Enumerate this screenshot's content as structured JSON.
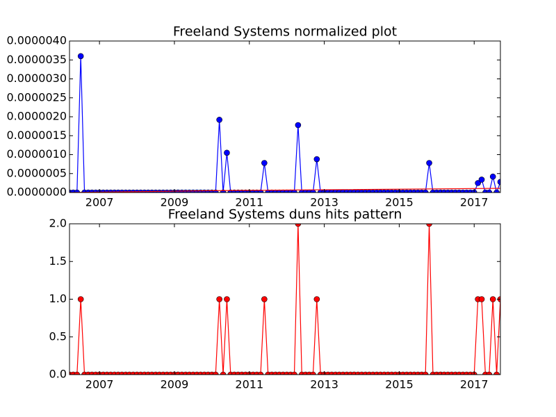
{
  "chart_data": [
    {
      "type": "line",
      "title": "Freeland Systems normalized plot",
      "x": [
        2006.2,
        2006.3,
        2006.4,
        2006.5,
        2006.6,
        2006.7,
        2006.8,
        2006.9,
        2007.0,
        2007.1,
        2007.2,
        2007.3,
        2007.4,
        2007.5,
        2007.6,
        2007.7,
        2007.8,
        2007.9,
        2008.0,
        2008.1,
        2008.2,
        2008.3,
        2008.4,
        2008.5,
        2008.6,
        2008.7,
        2008.8,
        2008.9,
        2009.0,
        2009.1,
        2009.2,
        2009.3,
        2009.4,
        2009.5,
        2009.6,
        2009.7,
        2009.8,
        2009.9,
        2010.0,
        2010.1,
        2010.2,
        2010.3,
        2010.4,
        2010.5,
        2010.6,
        2010.7,
        2010.8,
        2010.9,
        2011.0,
        2011.1,
        2011.2,
        2011.3,
        2011.4,
        2011.5,
        2011.6,
        2011.7,
        2011.8,
        2011.9,
        2012.0,
        2012.1,
        2012.2,
        2012.3,
        2012.4,
        2012.5,
        2012.6,
        2012.7,
        2012.8,
        2012.9,
        2013.0,
        2013.1,
        2013.2,
        2013.3,
        2013.4,
        2013.5,
        2013.6,
        2013.7,
        2013.8,
        2013.9,
        2014.0,
        2014.1,
        2014.2,
        2014.3,
        2014.4,
        2014.5,
        2014.6,
        2014.7,
        2014.8,
        2014.9,
        2015.0,
        2015.1,
        2015.2,
        2015.3,
        2015.4,
        2015.5,
        2015.6,
        2015.7,
        2015.8,
        2015.9,
        2016.0,
        2016.1,
        2016.2,
        2016.3,
        2016.4,
        2016.5,
        2016.6,
        2016.7,
        2016.8,
        2016.9,
        2017.0,
        2017.1,
        2017.2,
        2017.3,
        2017.4,
        2017.5,
        2017.6,
        2017.7
      ],
      "series": [
        {
          "color": "#0000ff",
          "values": [
            0,
            0,
            0,
            3.6e-06,
            0,
            0,
            0,
            0,
            0,
            0,
            0,
            0,
            0,
            0,
            0,
            0,
            0,
            0,
            0,
            0,
            0,
            0,
            0,
            0,
            0,
            0,
            0,
            0,
            0,
            0,
            0,
            0,
            0,
            0,
            0,
            0,
            0,
            0,
            0,
            0,
            1.92e-06,
            0,
            1.05e-06,
            0,
            0,
            0,
            0,
            0,
            0,
            0,
            0,
            0,
            7.8e-07,
            0,
            0,
            0,
            0,
            0,
            0,
            0,
            0,
            1.78e-06,
            0,
            0,
            0,
            0,
            8.8e-07,
            0,
            0,
            0,
            0,
            0,
            0,
            0,
            0,
            0,
            0,
            0,
            0,
            0,
            0,
            0,
            0,
            0,
            0,
            0,
            0,
            0,
            0,
            0,
            0,
            0,
            0,
            0,
            0,
            0,
            7.8e-07,
            0,
            0,
            0,
            0,
            0,
            0,
            0,
            0,
            0,
            0,
            0,
            0,
            2.5e-07,
            3.4e-07,
            0,
            0,
            4.2e-07,
            0,
            2.8e-07
          ]
        },
        {
          "color": "#ff0000",
          "marker": false,
          "x": [
            2006.2,
            2010.2,
            2017.7
          ],
          "values": [
            0,
            5e-08,
            1.1e-07
          ]
        }
      ],
      "xlim": [
        2006.2,
        2017.7
      ],
      "xticks": [
        2007,
        2009,
        2011,
        2013,
        2015,
        2017
      ],
      "ylim": [
        0,
        4e-06
      ],
      "yticks": [
        {
          "value": 0,
          "label": "0.0000000"
        },
        {
          "value": 5e-07,
          "label": "0.0000005"
        },
        {
          "value": 1e-06,
          "label": "0.0000010"
        },
        {
          "value": 1.5e-06,
          "label": "0.0000015"
        },
        {
          "value": 2e-06,
          "label": "0.0000020"
        },
        {
          "value": 2.5e-06,
          "label": "0.0000025"
        },
        {
          "value": 3e-06,
          "label": "0.0000030"
        },
        {
          "value": 3.5e-06,
          "label": "0.0000035"
        },
        {
          "value": 4e-06,
          "label": "0.0000040"
        }
      ]
    },
    {
      "type": "line",
      "title": "Freeland Systems duns hits pattern",
      "x": [
        2006.2,
        2006.3,
        2006.4,
        2006.5,
        2006.6,
        2006.7,
        2006.8,
        2006.9,
        2007.0,
        2007.1,
        2007.2,
        2007.3,
        2007.4,
        2007.5,
        2007.6,
        2007.7,
        2007.8,
        2007.9,
        2008.0,
        2008.1,
        2008.2,
        2008.3,
        2008.4,
        2008.5,
        2008.6,
        2008.7,
        2008.8,
        2008.9,
        2009.0,
        2009.1,
        2009.2,
        2009.3,
        2009.4,
        2009.5,
        2009.6,
        2009.7,
        2009.8,
        2009.9,
        2010.0,
        2010.1,
        2010.2,
        2010.3,
        2010.4,
        2010.5,
        2010.6,
        2010.7,
        2010.8,
        2010.9,
        2011.0,
        2011.1,
        2011.2,
        2011.3,
        2011.4,
        2011.5,
        2011.6,
        2011.7,
        2011.8,
        2011.9,
        2012.0,
        2012.1,
        2012.2,
        2012.3,
        2012.4,
        2012.5,
        2012.6,
        2012.7,
        2012.8,
        2012.9,
        2013.0,
        2013.1,
        2013.2,
        2013.3,
        2013.4,
        2013.5,
        2013.6,
        2013.7,
        2013.8,
        2013.9,
        2014.0,
        2014.1,
        2014.2,
        2014.3,
        2014.4,
        2014.5,
        2014.6,
        2014.7,
        2014.8,
        2014.9,
        2015.0,
        2015.1,
        2015.2,
        2015.3,
        2015.4,
        2015.5,
        2015.6,
        2015.7,
        2015.8,
        2015.9,
        2016.0,
        2016.1,
        2016.2,
        2016.3,
        2016.4,
        2016.5,
        2016.6,
        2016.7,
        2016.8,
        2016.9,
        2017.0,
        2017.1,
        2017.2,
        2017.3,
        2017.4,
        2017.5,
        2017.6,
        2017.7
      ],
      "series": [
        {
          "color": "#ff0000",
          "values": [
            0,
            0,
            0,
            1,
            0,
            0,
            0,
            0,
            0,
            0,
            0,
            0,
            0,
            0,
            0,
            0,
            0,
            0,
            0,
            0,
            0,
            0,
            0,
            0,
            0,
            0,
            0,
            0,
            0,
            0,
            0,
            0,
            0,
            0,
            0,
            0,
            0,
            0,
            0,
            0,
            1,
            0,
            1,
            0,
            0,
            0,
            0,
            0,
            0,
            0,
            0,
            0,
            1,
            0,
            0,
            0,
            0,
            0,
            0,
            0,
            0,
            2,
            0,
            0,
            0,
            0,
            1,
            0,
            0,
            0,
            0,
            0,
            0,
            0,
            0,
            0,
            0,
            0,
            0,
            0,
            0,
            0,
            0,
            0,
            0,
            0,
            0,
            0,
            0,
            0,
            0,
            0,
            0,
            0,
            0,
            0,
            2,
            0,
            0,
            0,
            0,
            0,
            0,
            0,
            0,
            0,
            0,
            0,
            0,
            1,
            1,
            0,
            0,
            1,
            0,
            1
          ]
        }
      ],
      "xlim": [
        2006.2,
        2017.7
      ],
      "xticks": [
        2007,
        2009,
        2011,
        2013,
        2015,
        2017
      ],
      "ylim": [
        0,
        2
      ],
      "yticks": [
        {
          "value": 0,
          "label": "0.0"
        },
        {
          "value": 0.5,
          "label": "0.5"
        },
        {
          "value": 1,
          "label": "1.0"
        },
        {
          "value": 1.5,
          "label": "1.5"
        },
        {
          "value": 2,
          "label": "2.0"
        }
      ]
    }
  ]
}
